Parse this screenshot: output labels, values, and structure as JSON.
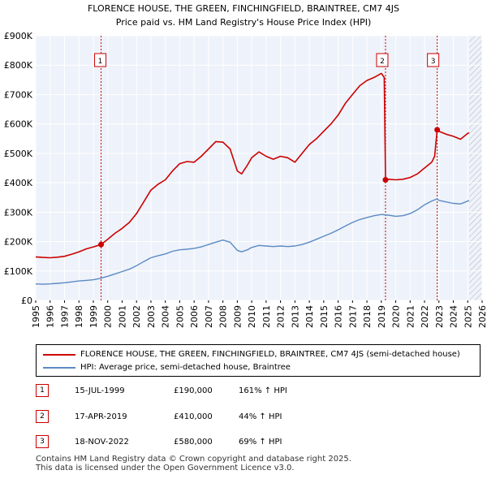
{
  "chart_data": {
    "type": "line",
    "title": "FLORENCE HOUSE, THE GREEN, FINCHINGFIELD, BRAINTREE, CM7 4JS",
    "subtitle": "Price paid vs. HM Land Registry's House Price Index (HPI)",
    "xlim": [
      1995,
      2026
    ],
    "ylim": [
      0,
      900000
    ],
    "y_ticks": [
      0,
      100000,
      200000,
      300000,
      400000,
      500000,
      600000,
      700000,
      800000,
      900000
    ],
    "y_tick_labels": [
      "£0",
      "£100K",
      "£200K",
      "£300K",
      "£400K",
      "£500K",
      "£600K",
      "£700K",
      "£800K",
      "£900K"
    ],
    "x_ticks": [
      1995,
      1996,
      1997,
      1998,
      1999,
      2000,
      2001,
      2002,
      2003,
      2004,
      2005,
      2006,
      2007,
      2008,
      2009,
      2010,
      2011,
      2012,
      2013,
      2014,
      2015,
      2016,
      2017,
      2018,
      2019,
      2020,
      2021,
      2022,
      2023,
      2024,
      2025,
      2026
    ],
    "future_hatch_start": 2025.1,
    "series": [
      {
        "name": "FLORENCE HOUSE, THE GREEN, FINCHINGFIELD, BRAINTREE, CM7 4JS (semi-detached house)",
        "color": "#cc0000",
        "points": [
          [
            1995.0,
            148000
          ],
          [
            1995.5,
            146000
          ],
          [
            1996.0,
            145000
          ],
          [
            1996.5,
            147000
          ],
          [
            1997.0,
            150000
          ],
          [
            1997.5,
            157000
          ],
          [
            1998.0,
            165000
          ],
          [
            1998.5,
            175000
          ],
          [
            1999.0,
            182000
          ],
          [
            1999.54,
            190000
          ],
          [
            2000.0,
            208000
          ],
          [
            2000.5,
            228000
          ],
          [
            2001.0,
            245000
          ],
          [
            2001.5,
            265000
          ],
          [
            2002.0,
            295000
          ],
          [
            2002.5,
            335000
          ],
          [
            2003.0,
            375000
          ],
          [
            2003.5,
            395000
          ],
          [
            2004.0,
            410000
          ],
          [
            2004.5,
            440000
          ],
          [
            2005.0,
            465000
          ],
          [
            2005.5,
            472000
          ],
          [
            2006.0,
            470000
          ],
          [
            2006.5,
            490000
          ],
          [
            2007.0,
            515000
          ],
          [
            2007.5,
            540000
          ],
          [
            2008.0,
            538000
          ],
          [
            2008.5,
            515000
          ],
          [
            2009.0,
            440000
          ],
          [
            2009.3,
            430000
          ],
          [
            2009.7,
            460000
          ],
          [
            2010.0,
            485000
          ],
          [
            2010.5,
            505000
          ],
          [
            2011.0,
            490000
          ],
          [
            2011.5,
            480000
          ],
          [
            2012.0,
            490000
          ],
          [
            2012.5,
            485000
          ],
          [
            2013.0,
            470000
          ],
          [
            2013.5,
            500000
          ],
          [
            2014.0,
            530000
          ],
          [
            2014.5,
            550000
          ],
          [
            2015.0,
            575000
          ],
          [
            2015.5,
            600000
          ],
          [
            2016.0,
            630000
          ],
          [
            2016.5,
            670000
          ],
          [
            2017.0,
            700000
          ],
          [
            2017.5,
            730000
          ],
          [
            2018.0,
            748000
          ],
          [
            2018.5,
            758000
          ],
          [
            2019.0,
            772000
          ],
          [
            2019.2,
            758000
          ],
          [
            2019.29,
            410000
          ],
          [
            2019.5,
            412000
          ],
          [
            2020.0,
            410000
          ],
          [
            2020.5,
            412000
          ],
          [
            2021.0,
            418000
          ],
          [
            2021.5,
            430000
          ],
          [
            2022.0,
            450000
          ],
          [
            2022.5,
            470000
          ],
          [
            2022.7,
            490000
          ],
          [
            2022.88,
            580000
          ],
          [
            2023.0,
            575000
          ],
          [
            2023.5,
            565000
          ],
          [
            2024.0,
            558000
          ],
          [
            2024.5,
            548000
          ],
          [
            2025.0,
            568000
          ],
          [
            2025.1,
            570000
          ]
        ]
      },
      {
        "name": "HPI: Average price, semi-detached house, Braintree",
        "color": "#5b8ac4",
        "points": [
          [
            1995.0,
            56000
          ],
          [
            1995.5,
            55000
          ],
          [
            1996.0,
            56000
          ],
          [
            1996.5,
            58000
          ],
          [
            1997.0,
            60000
          ],
          [
            1997.5,
            63000
          ],
          [
            1998.0,
            66000
          ],
          [
            1998.5,
            68000
          ],
          [
            1999.0,
            70000
          ],
          [
            1999.5,
            75000
          ],
          [
            2000.0,
            82000
          ],
          [
            2000.5,
            90000
          ],
          [
            2001.0,
            98000
          ],
          [
            2001.5,
            106000
          ],
          [
            2002.0,
            118000
          ],
          [
            2002.5,
            132000
          ],
          [
            2003.0,
            145000
          ],
          [
            2003.5,
            152000
          ],
          [
            2004.0,
            158000
          ],
          [
            2004.5,
            167000
          ],
          [
            2005.0,
            172000
          ],
          [
            2005.5,
            174000
          ],
          [
            2006.0,
            177000
          ],
          [
            2006.5,
            182000
          ],
          [
            2007.0,
            190000
          ],
          [
            2007.5,
            198000
          ],
          [
            2008.0,
            205000
          ],
          [
            2008.5,
            198000
          ],
          [
            2009.0,
            170000
          ],
          [
            2009.3,
            165000
          ],
          [
            2009.7,
            172000
          ],
          [
            2010.0,
            180000
          ],
          [
            2010.5,
            187000
          ],
          [
            2011.0,
            185000
          ],
          [
            2011.5,
            183000
          ],
          [
            2012.0,
            185000
          ],
          [
            2012.5,
            183000
          ],
          [
            2013.0,
            185000
          ],
          [
            2013.5,
            190000
          ],
          [
            2014.0,
            198000
          ],
          [
            2014.5,
            208000
          ],
          [
            2015.0,
            218000
          ],
          [
            2015.5,
            228000
          ],
          [
            2016.0,
            240000
          ],
          [
            2016.5,
            253000
          ],
          [
            2017.0,
            265000
          ],
          [
            2017.5,
            275000
          ],
          [
            2018.0,
            282000
          ],
          [
            2018.5,
            288000
          ],
          [
            2019.0,
            292000
          ],
          [
            2019.5,
            290000
          ],
          [
            2020.0,
            286000
          ],
          [
            2020.5,
            288000
          ],
          [
            2021.0,
            295000
          ],
          [
            2021.5,
            308000
          ],
          [
            2022.0,
            325000
          ],
          [
            2022.5,
            338000
          ],
          [
            2022.88,
            345000
          ],
          [
            2023.0,
            340000
          ],
          [
            2023.5,
            335000
          ],
          [
            2024.0,
            330000
          ],
          [
            2024.5,
            328000
          ],
          [
            2025.0,
            338000
          ],
          [
            2025.1,
            340000
          ]
        ]
      }
    ],
    "sales": [
      {
        "label": "1",
        "year": 1999.54,
        "price": 190000
      },
      {
        "label": "2",
        "year": 2019.29,
        "price": 410000
      },
      {
        "label": "3",
        "year": 2022.88,
        "price": 580000
      }
    ]
  },
  "legend": {
    "items": [
      {
        "label": "FLORENCE HOUSE, THE GREEN, FINCHINGFIELD, BRAINTREE, CM7 4JS (semi-detached house)",
        "color": "#cc0000"
      },
      {
        "label": "HPI: Average price, semi-detached house, Braintree",
        "color": "#5b8ac4"
      }
    ]
  },
  "transactions": [
    {
      "num": "1",
      "date": "15-JUL-1999",
      "price": "£190,000",
      "hpi": "161% ↑ HPI"
    },
    {
      "num": "2",
      "date": "17-APR-2019",
      "price": "£410,000",
      "hpi": "44% ↑ HPI"
    },
    {
      "num": "3",
      "date": "18-NOV-2022",
      "price": "£580,000",
      "hpi": "69% ↑ HPI"
    }
  ],
  "footer": {
    "line1": "Contains HM Land Registry data © Crown copyright and database right 2025.",
    "line2": "This data is licensed under the Open Government Licence v3.0."
  }
}
